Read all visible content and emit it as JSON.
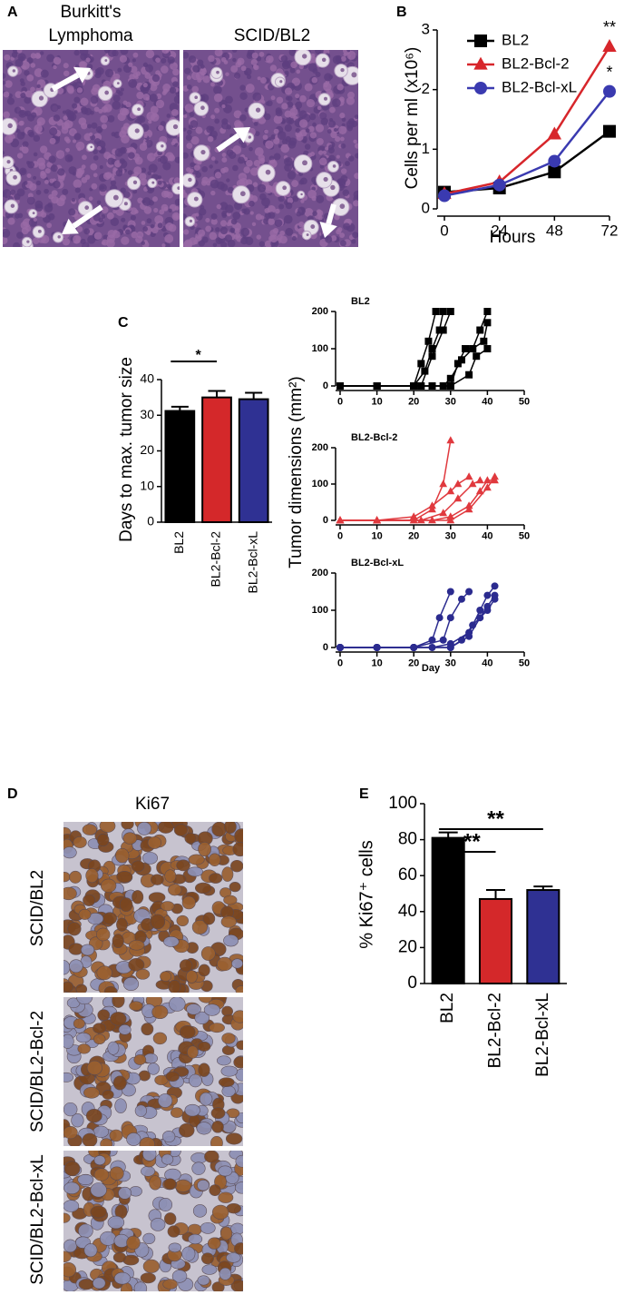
{
  "panel_labels": [
    "A",
    "B",
    "C",
    "D",
    "E"
  ],
  "panel_a": {
    "titles": [
      [
        "Burkitt's",
        "Lymphoma"
      ],
      [
        "SCID/BL2"
      ]
    ]
  },
  "panel_d": {
    "title": "Ki67",
    "row_labels": [
      "SCID/BL2",
      "SCID/BL2-Bcl-2",
      "SCID/BL2-Bcl-xL"
    ]
  },
  "tumor_y_label": "Tumor dimensions (mm²)",
  "chart_data": [
    {
      "type": "line",
      "x_label": "Hours",
      "y_label": "Cells per ml (x10⁶)",
      "x": [
        0,
        24,
        48,
        72
      ],
      "xlim": [
        0,
        72
      ],
      "xticks": [
        0,
        24,
        48,
        72
      ],
      "ylim": [
        0,
        3
      ],
      "yticks": [
        0,
        1,
        2,
        3
      ],
      "legend": "upper left",
      "annotations": [
        "**",
        "*"
      ],
      "series": [
        {
          "name": "BL2",
          "color": "#000000",
          "marker": "square",
          "values": [
            0.28,
            0.35,
            0.62,
            1.3
          ]
        },
        {
          "name": "BL2-Bcl-2",
          "color": "#d7262b",
          "marker": "triangle",
          "values": [
            0.25,
            0.45,
            1.25,
            2.72
          ]
        },
        {
          "name": "BL2-Bcl-xL",
          "color": "#3a3ab0",
          "marker": "circle",
          "values": [
            0.22,
            0.4,
            0.8,
            1.97
          ]
        }
      ]
    },
    {
      "type": "bar",
      "y_label": "Days to max. tumor size",
      "categories": [
        "BL2",
        "BL2-Bcl-2",
        "BL2-Bcl-xL"
      ],
      "values": [
        31.2,
        35,
        34.5
      ],
      "errors": [
        1.2,
        1.8,
        1.8
      ],
      "colors": [
        "#000000",
        "#d4282a",
        "#2f3193"
      ],
      "ylim": [
        0,
        40
      ],
      "yticks": [
        0,
        10,
        20,
        30,
        40
      ],
      "annotations": [
        "*"
      ]
    },
    {
      "type": "line",
      "title": "BL2",
      "color": "#000000",
      "marker": "square",
      "xlim": [
        0,
        50
      ],
      "xticks": [
        0,
        10,
        20,
        30,
        40,
        50
      ],
      "ylim": [
        0,
        200
      ],
      "yticks": [
        0,
        100,
        200
      ],
      "series": [
        {
          "x": [
            0,
            10,
            20,
            22,
            24,
            26
          ],
          "values": [
            0,
            0,
            0,
            60,
            120,
            200
          ]
        },
        {
          "x": [
            0,
            10,
            20,
            23,
            25,
            27,
            28
          ],
          "values": [
            0,
            0,
            0,
            40,
            100,
            150,
            200
          ]
        },
        {
          "x": [
            0,
            10,
            22,
            25,
            28,
            30
          ],
          "values": [
            0,
            0,
            0,
            80,
            150,
            200
          ]
        },
        {
          "x": [
            0,
            10,
            20,
            25,
            30,
            32,
            34,
            36,
            38,
            40
          ],
          "values": [
            0,
            0,
            0,
            0,
            0,
            60,
            100,
            100,
            150,
            200
          ]
        },
        {
          "x": [
            0,
            10,
            20,
            28,
            30,
            33,
            36,
            39,
            40
          ],
          "values": [
            0,
            0,
            0,
            0,
            20,
            70,
            100,
            120,
            170
          ]
        },
        {
          "x": [
            0,
            10,
            20,
            30,
            35,
            37,
            40
          ],
          "values": [
            0,
            0,
            0,
            0,
            30,
            80,
            100
          ]
        }
      ]
    },
    {
      "type": "line",
      "title": "BL2-Bcl-2",
      "color": "#e0393e",
      "marker": "triangle",
      "xlim": [
        0,
        50
      ],
      "xticks": [
        0,
        10,
        20,
        30,
        40,
        50
      ],
      "ylim": [
        0,
        200
      ],
      "yticks": [
        0,
        100,
        200
      ],
      "series": [
        {
          "x": [
            0,
            10,
            20,
            25,
            28,
            30
          ],
          "values": [
            0,
            0,
            0,
            30,
            100,
            220
          ]
        },
        {
          "x": [
            0,
            10,
            20,
            25,
            30,
            32,
            35
          ],
          "values": [
            0,
            0,
            10,
            40,
            80,
            100,
            120
          ]
        },
        {
          "x": [
            0,
            10,
            22,
            28,
            32,
            36,
            38
          ],
          "values": [
            0,
            0,
            0,
            20,
            60,
            100,
            110
          ]
        },
        {
          "x": [
            0,
            10,
            25,
            30,
            35,
            38,
            40,
            42
          ],
          "values": [
            0,
            0,
            0,
            10,
            40,
            80,
            110,
            110
          ]
        },
        {
          "x": [
            0,
            10,
            20,
            30,
            35,
            40,
            42
          ],
          "values": [
            0,
            0,
            0,
            0,
            30,
            90,
            120
          ]
        }
      ]
    },
    {
      "type": "line",
      "title": "BL2-Bcl-xL",
      "color": "#2b2b8f",
      "marker": "circle",
      "x_label": "Day",
      "xlim": [
        0,
        50
      ],
      "xticks": [
        0,
        10,
        20,
        30,
        40,
        50
      ],
      "ylim": [
        0,
        200
      ],
      "yticks": [
        0,
        100,
        200
      ],
      "series": [
        {
          "x": [
            0,
            10,
            20,
            25,
            27,
            30
          ],
          "values": [
            0,
            0,
            0,
            20,
            80,
            150
          ]
        },
        {
          "x": [
            0,
            10,
            20,
            28,
            30,
            33,
            35
          ],
          "values": [
            0,
            0,
            0,
            20,
            80,
            130,
            150
          ]
        },
        {
          "x": [
            0,
            10,
            25,
            30,
            35,
            38,
            40,
            42
          ],
          "values": [
            0,
            0,
            0,
            10,
            40,
            100,
            140,
            165
          ]
        },
        {
          "x": [
            0,
            10,
            20,
            30,
            35,
            38,
            40,
            42
          ],
          "values": [
            0,
            0,
            0,
            0,
            30,
            80,
            110,
            140
          ]
        },
        {
          "x": [
            0,
            10,
            20,
            30,
            33,
            36,
            40,
            42
          ],
          "values": [
            0,
            0,
            0,
            0,
            20,
            60,
            100,
            130
          ]
        }
      ]
    },
    {
      "type": "bar",
      "y_label": "% Ki67⁺ cells",
      "categories": [
        "BL2",
        "BL2-Bcl-2",
        "BL2-Bcl-xL"
      ],
      "values": [
        81,
        47,
        52
      ],
      "errors": [
        3,
        5,
        2
      ],
      "colors": [
        "#000000",
        "#d4282a",
        "#2f3193"
      ],
      "ylim": [
        0,
        100
      ],
      "yticks": [
        0,
        20,
        40,
        60,
        80,
        100
      ],
      "annotations": [
        "**",
        "**"
      ]
    }
  ]
}
